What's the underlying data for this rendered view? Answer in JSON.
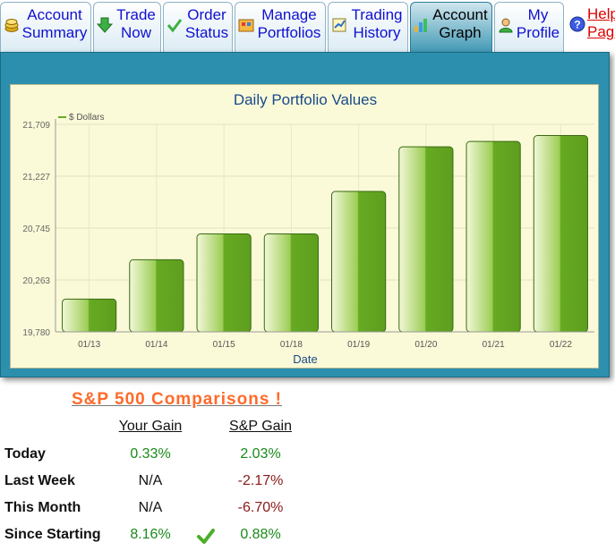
{
  "tabs": [
    {
      "id": "account-summary",
      "lines": [
        "Account",
        "Summary"
      ],
      "icon": "coins-icon",
      "active": false
    },
    {
      "id": "trade-now",
      "lines": [
        "Trade",
        "Now"
      ],
      "icon": "green-arrow-down-icon",
      "active": false
    },
    {
      "id": "order-status",
      "lines": [
        "Order",
        "Status"
      ],
      "icon": "checkmark-icon",
      "active": false
    },
    {
      "id": "manage-portfolios",
      "lines": [
        "Manage",
        "Portfolios"
      ],
      "icon": "portfolio-icon",
      "active": false
    },
    {
      "id": "trading-history",
      "lines": [
        "Trading",
        "History"
      ],
      "icon": "history-icon",
      "active": false
    },
    {
      "id": "account-graph",
      "lines": [
        "Account",
        "Graph"
      ],
      "icon": "bar-graph-icon",
      "active": true
    },
    {
      "id": "my-profile",
      "lines": [
        "My",
        "Profile"
      ],
      "icon": "profile-icon",
      "active": false
    },
    {
      "id": "help-page",
      "lines": [
        "Help",
        "Page"
      ],
      "icon": "help-icon",
      "active": false
    }
  ],
  "chart_data": {
    "type": "bar",
    "title": "Daily Portfolio Values",
    "xlabel": "Date",
    "ylabel": "",
    "legend": "$ Dollars",
    "legend_position": "top-left",
    "categories": [
      "01/13",
      "01/14",
      "01/15",
      "01/18",
      "01/19",
      "01/20",
      "01/21",
      "01/22"
    ],
    "values": [
      20085,
      20450,
      20690,
      20690,
      21085,
      21500,
      21550,
      21605
    ],
    "yticks": [
      "19,780",
      "20,263",
      "20,745",
      "21,227",
      "21,709"
    ],
    "ylim": [
      19780,
      21709
    ],
    "grid": true,
    "bar_color": "#66aa22"
  },
  "comparisons": {
    "title": "S&P 500 Comparisons !",
    "col_your": "Your Gain",
    "col_sp": "S&P Gain",
    "rows": [
      {
        "label": "Today",
        "your": "0.33%",
        "sp": "2.03%"
      },
      {
        "label": "Last Week",
        "your": "N/A",
        "sp": "-2.17%"
      },
      {
        "label": "This Month",
        "your": "N/A",
        "sp": "-6.70%"
      },
      {
        "label": "Since Starting",
        "your": "8.16%",
        "sp": "0.88%"
      }
    ]
  }
}
